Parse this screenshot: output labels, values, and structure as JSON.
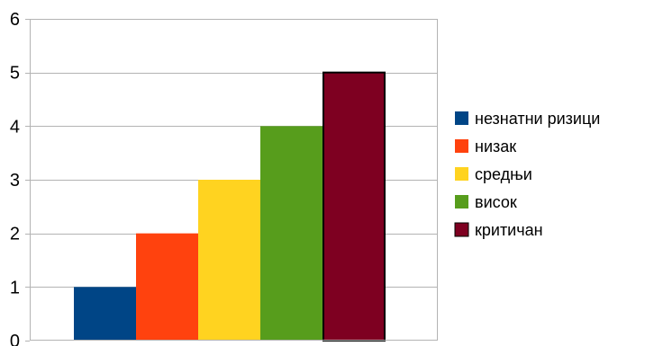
{
  "chart_data": {
    "type": "bar",
    "categories": [
      "незнатни ризици",
      "низак",
      "средњи",
      "висок",
      "критичан"
    ],
    "values": [
      1,
      2,
      3,
      4,
      5
    ],
    "colors": [
      "#004586",
      "#ff420e",
      "#ffd320",
      "#579d1c",
      "#7e0021"
    ],
    "highlighted_category": "критичан",
    "title": "",
    "xlabel": "",
    "ylabel": "",
    "ylim": [
      0,
      6
    ],
    "yticks": [
      "0",
      "1",
      "2",
      "3",
      "4",
      "5",
      "6"
    ],
    "grid": true,
    "legend_position": "right"
  }
}
